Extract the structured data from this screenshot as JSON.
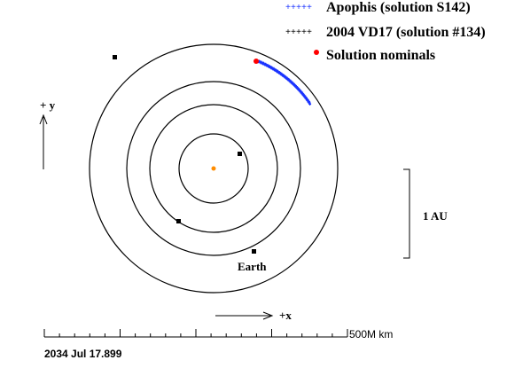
{
  "legend": {
    "apophis": {
      "label": "Apophis (solution S142)",
      "color": "#1a33ff",
      "symbol": "+++++"
    },
    "vd17": {
      "label": "2004 VD17 (solution #134)",
      "color": "#000000",
      "symbol": "+++++"
    },
    "nominals": {
      "label": "Solution nominals",
      "color": "#ff0000"
    }
  },
  "axes": {
    "y_label": "+ y",
    "x_label": "+x"
  },
  "scale_bar": {
    "label": "1 AU"
  },
  "ruler": {
    "label": "500M km"
  },
  "planet_label": "Earth",
  "date": "2034 Jul 17.899",
  "colors": {
    "sun": "#ff8c00",
    "orbit": "#000000",
    "apophis_cloud": "#1a33ff",
    "nominal": "#ff0000"
  }
}
